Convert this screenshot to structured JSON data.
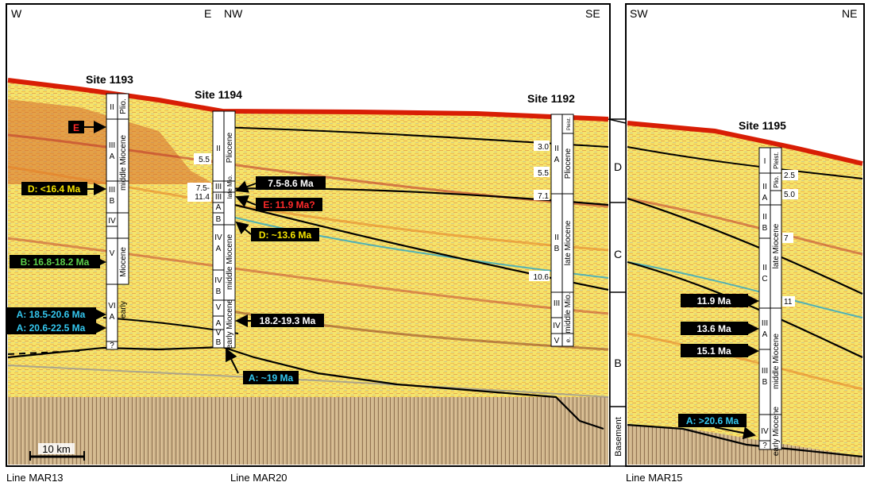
{
  "orientation": {
    "left_w": "W",
    "left_e": "E",
    "mid_nw": "NW",
    "mid_se": "SE",
    "right_sw": "SW",
    "right_ne": "NE"
  },
  "sites": {
    "s1193": "Site 1193",
    "s1194": "Site 1194",
    "s1192": "Site 1192",
    "s1195": "Site 1195"
  },
  "lines": {
    "mar13": "Line MAR13",
    "mar20": "Line MAR20",
    "mar15": "Line MAR15"
  },
  "scale_bar": "10 km",
  "megasequences": {
    "D": "D",
    "C": "C",
    "B": "B",
    "basement": "Basement"
  },
  "column_1193": {
    "units": [
      "II",
      "III",
      "A",
      "III",
      "B",
      "IV",
      "V",
      "VI",
      "A",
      "?"
    ],
    "ages": [
      "Plio.",
      "middle Miocene",
      "Miocene",
      "early"
    ]
  },
  "column_1194": {
    "units": [
      "II",
      "III",
      "III",
      "A",
      "B",
      "IV",
      "A",
      "IV",
      "B",
      "V",
      "A",
      "V",
      "B"
    ],
    "ages": [
      "Pliocene",
      "late Mio.",
      "middle Miocene",
      "early Miocene"
    ],
    "depths": [
      "5.5",
      "7.5-",
      "11.4"
    ]
  },
  "column_1192": {
    "units": [
      "II",
      "A",
      "II",
      "B",
      "III",
      "IV",
      "V"
    ],
    "ages": [
      "Pleist.",
      "Pliocene",
      "late Miocene",
      "middle Mio.",
      "e."
    ],
    "depths": [
      "3.0",
      "5.5",
      "7.1",
      "10.6"
    ]
  },
  "column_1195": {
    "units": [
      "I",
      "II",
      "A",
      "II",
      "B",
      "II",
      "C",
      "III",
      "A",
      "III",
      "B",
      "IV",
      "?"
    ],
    "ages": [
      "Pleist.",
      "Plio.",
      "late Miocene",
      "middle Miocene",
      "early Miocene"
    ],
    "depths": [
      "2.5",
      "5.0",
      "7",
      "11"
    ]
  },
  "labels": {
    "e_1193": "E",
    "d_1193": "D: <16.4 Ma",
    "b_1193": "B: 16.8-18.2 Ma",
    "a1_1193": "A: 18.5-20.6 Ma",
    "a2_1193": "A: 20.6-22.5 Ma",
    "m_1194_1": "7.5-8.6 Ma",
    "e_1194": "E: 11.9 Ma?",
    "d_1194": "D: ~13.6 Ma",
    "m_1194_2": "18.2-19.3 Ma",
    "a_1194": "A: ~19 Ma",
    "m_1195_1": "11.9 Ma",
    "m_1195_2": "13.6 Ma",
    "m_1195_3": "15.1 Ma",
    "a_1195": "A: >20.6 Ma"
  },
  "colors": {
    "seafloor": "#d81e05",
    "yellow": "#f3e04a",
    "orange": "#e8a030",
    "red_band": "#d03a22",
    "cyan": "#2aa8c8",
    "label_dark": "#000000",
    "label_d": "#f5e400",
    "label_b": "#5bd04a",
    "label_a": "#34c8f0",
    "label_e": "#ff2a2a"
  }
}
